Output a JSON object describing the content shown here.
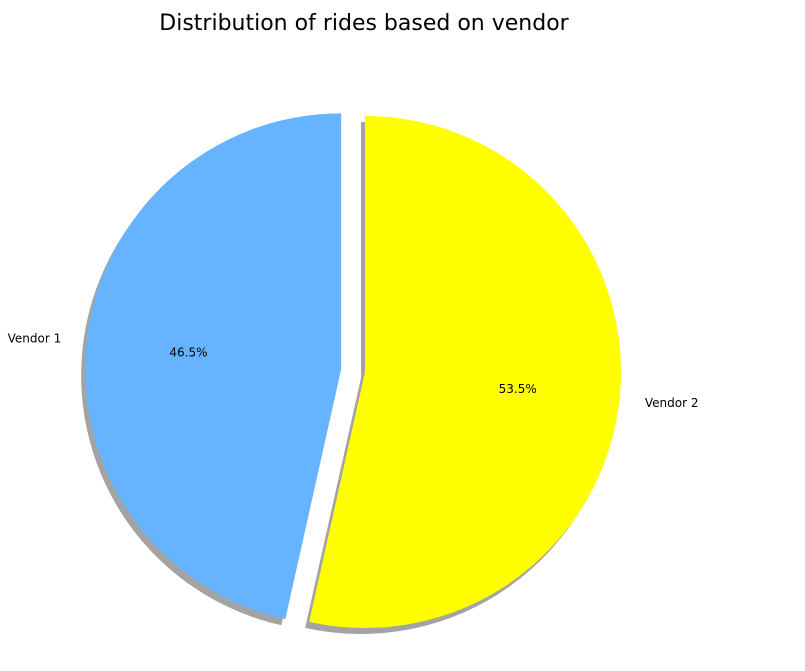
{
  "chart_data": {
    "type": "pie",
    "title": "Distribution of rides based on vendor",
    "slices": [
      {
        "label": "Vendor 1",
        "value": 46.5,
        "pct_label": "46.5%",
        "color": "#66b3ff",
        "exploded": true
      },
      {
        "label": "Vendor 2",
        "value": 53.5,
        "pct_label": "53.5%",
        "color": "#ffff00",
        "exploded": false
      }
    ],
    "start_angle_deg": 90,
    "direction": "counterclockwise",
    "shadow": true,
    "shadow_color": "#999999"
  }
}
